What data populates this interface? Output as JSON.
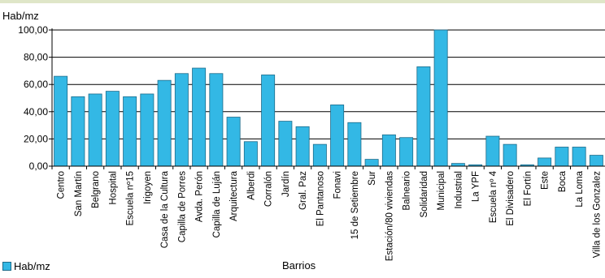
{
  "chart_data": {
    "type": "bar",
    "ylabel": "Hab/mz",
    "xlabel": "Barrios",
    "ylim": [
      0,
      100
    ],
    "yticks": [
      "0,00",
      "20,00",
      "40,00",
      "60,00",
      "80,00",
      "100,00"
    ],
    "grid": true,
    "legend_position": "bottom-left",
    "bar_color": "#33b8e5",
    "categories": [
      "Centro",
      "San Martín",
      "Belgrano",
      "Hospital",
      "Escuela nº15",
      "Irigoyen",
      "Casa de la Cultura",
      "Capilla de Porres",
      "Avda. Perón",
      "Capilla de Luján",
      "Arquitectura",
      "Alberdi",
      "Corralón",
      "Jardín",
      "Gral. Paz",
      "El Pantanoso",
      "Fonavi",
      "15 de Setiembre",
      "Sur",
      "Estación/80 viviendas",
      "Balneario",
      "Solidaridad",
      "Municipal",
      "Industrial",
      "La YPF",
      "Escuela nº 4",
      "El Divisadero",
      "El Fortín",
      "Este",
      "Boca",
      "La Loma",
      "Villa de los Gonzalez"
    ],
    "series": [
      {
        "name": "Hab/mz",
        "values": [
          66,
          51,
          53,
          55,
          51,
          53,
          63,
          68,
          72,
          68,
          36,
          18,
          67,
          33,
          29,
          16,
          45,
          32,
          5,
          23,
          21,
          73,
          100,
          2,
          1,
          22,
          16,
          1,
          6,
          14,
          14,
          8
        ]
      }
    ]
  }
}
